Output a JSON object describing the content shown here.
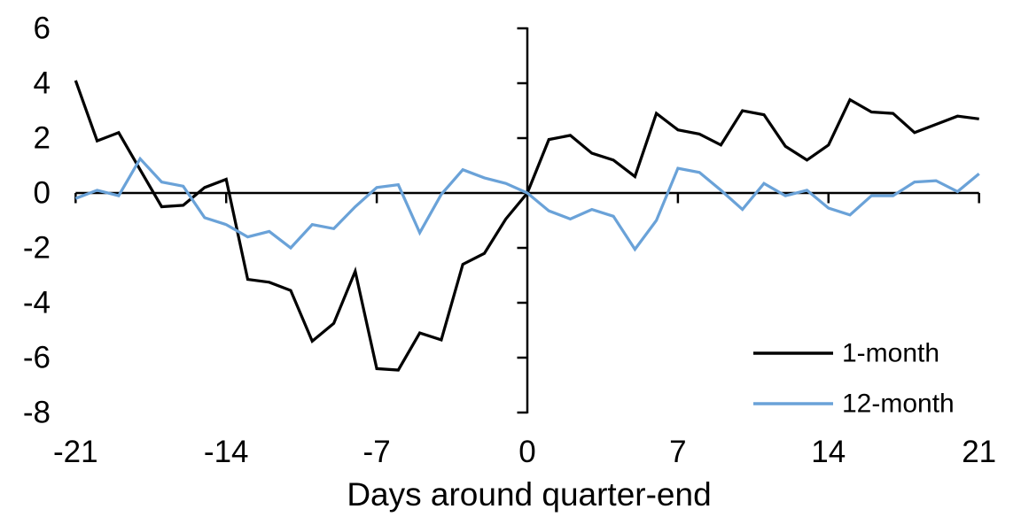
{
  "chart": {
    "x_axis_label": "Days around quarter-end",
    "y_ticks": [
      6,
      4,
      2,
      0,
      -2,
      -4,
      -6,
      -8
    ],
    "x_ticks": [
      -21,
      -14,
      -7,
      0,
      7,
      14,
      21
    ],
    "axis_color": "#000000",
    "legend": [
      {
        "label": "1-month",
        "color": "#000000"
      },
      {
        "label": "12-month",
        "color": "#6AA2D8"
      }
    ]
  },
  "chart_data": {
    "type": "line",
    "title": "",
    "xlabel": "Days around quarter-end",
    "ylabel": "",
    "xlim": [
      -21,
      21
    ],
    "ylim": [
      -8,
      6
    ],
    "grid": false,
    "legend_position": "inside lower right",
    "x": [
      -21,
      -20,
      -19,
      -18,
      -17,
      -16,
      -15,
      -14,
      -13,
      -12,
      -11,
      -10,
      -9,
      -8,
      -7,
      -6,
      -5,
      -4,
      -3,
      -2,
      -1,
      0,
      1,
      2,
      3,
      4,
      5,
      6,
      7,
      8,
      9,
      10,
      11,
      12,
      13,
      14,
      15,
      16,
      17,
      18,
      19,
      20,
      21
    ],
    "series": [
      {
        "name": "1-month",
        "color": "#000000",
        "values": [
          4.1,
          1.9,
          2.2,
          0.85,
          -0.5,
          -0.45,
          0.2,
          0.5,
          -3.15,
          -3.25,
          -3.55,
          -5.4,
          -4.75,
          -2.85,
          -6.4,
          -6.45,
          -5.1,
          -5.35,
          -2.6,
          -2.2,
          -0.95,
          0.0,
          1.95,
          2.1,
          1.45,
          1.2,
          0.6,
          2.9,
          2.3,
          2.15,
          1.75,
          3.0,
          2.85,
          1.7,
          1.2,
          1.75,
          3.4,
          2.95,
          2.9,
          2.2,
          2.5,
          2.8,
          2.7
        ]
      },
      {
        "name": "12-month",
        "color": "#6AA2D8",
        "values": [
          -0.2,
          0.1,
          -0.1,
          1.25,
          0.4,
          0.25,
          -0.9,
          -1.15,
          -1.6,
          -1.4,
          -2.0,
          -1.15,
          -1.3,
          -0.5,
          0.2,
          0.3,
          -1.45,
          -0.05,
          0.85,
          0.55,
          0.35,
          0.0,
          -0.65,
          -0.95,
          -0.6,
          -0.85,
          -2.05,
          -1.0,
          0.9,
          0.75,
          0.1,
          -0.6,
          0.35,
          -0.1,
          0.1,
          -0.55,
          -0.8,
          -0.1,
          -0.1,
          0.4,
          0.45,
          0.05,
          0.7
        ]
      }
    ]
  }
}
